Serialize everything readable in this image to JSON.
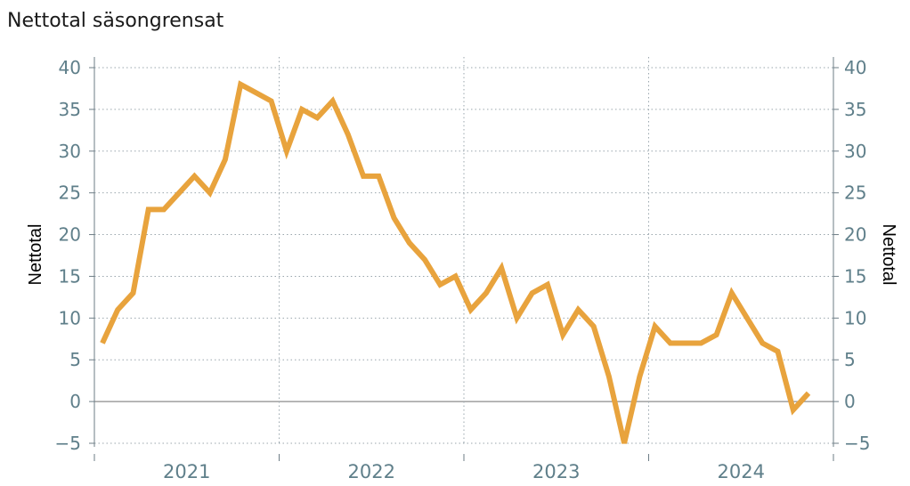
{
  "chart_data": {
    "type": "line",
    "title": "Nettotal säsongrensat",
    "ylabel_left": "Nettotal",
    "ylabel_right": "Nettotal",
    "ylim": [
      -5,
      40
    ],
    "yticks": [
      -5,
      0,
      5,
      10,
      15,
      20,
      25,
      30,
      35,
      40
    ],
    "xtick_labels": [
      "2021",
      "2022",
      "2023",
      "2024"
    ],
    "grid": true,
    "line_color": "#e8a33d",
    "series": [
      {
        "values": [
          7,
          11,
          13,
          23,
          23,
          25,
          27,
          25,
          29,
          38,
          37,
          36,
          30,
          35,
          34,
          36,
          32,
          27,
          27,
          22,
          19,
          17,
          14,
          15,
          11,
          13,
          16,
          10,
          13,
          14,
          8,
          11,
          9,
          3,
          -5,
          3,
          9,
          7,
          7,
          7,
          8,
          13,
          10,
          7,
          6,
          -1,
          1
        ]
      }
    ]
  }
}
